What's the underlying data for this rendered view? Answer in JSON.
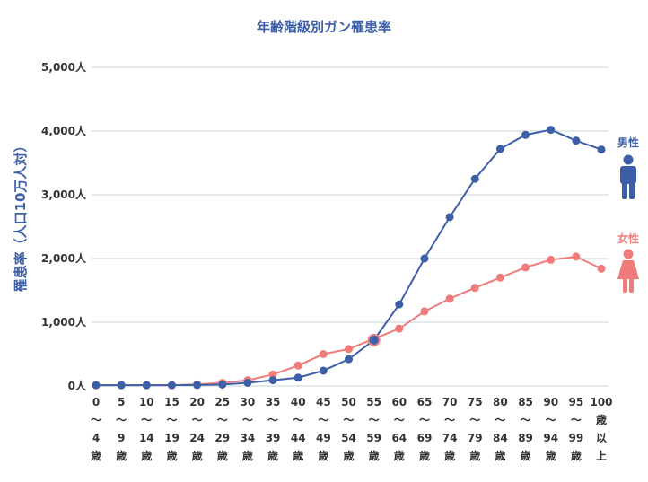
{
  "chart_data": {
    "type": "line",
    "title": "年齢階級別ガン罹患率",
    "ylabel": "罹患率（人口10万人対）",
    "xlabel": "",
    "ylim": [
      0,
      5000
    ],
    "yticks": [
      "0人",
      "1,000人",
      "2,000人",
      "3,000人",
      "4,000人",
      "5,000人"
    ],
    "ytick_values": [
      0,
      1000,
      2000,
      3000,
      4000,
      5000
    ],
    "categories": [
      [
        "0",
        "〜",
        "4",
        "歳"
      ],
      [
        "5",
        "〜",
        "9",
        "歳"
      ],
      [
        "10",
        "〜",
        "14",
        "歳"
      ],
      [
        "15",
        "〜",
        "19",
        "歳"
      ],
      [
        "20",
        "〜",
        "24",
        "歳"
      ],
      [
        "25",
        "〜",
        "29",
        "歳"
      ],
      [
        "30",
        "〜",
        "34",
        "歳"
      ],
      [
        "35",
        "〜",
        "39",
        "歳"
      ],
      [
        "40",
        "〜",
        "44",
        "歳"
      ],
      [
        "45",
        "〜",
        "49",
        "歳"
      ],
      [
        "50",
        "〜",
        "54",
        "歳"
      ],
      [
        "55",
        "〜",
        "59",
        "歳"
      ],
      [
        "60",
        "〜",
        "64",
        "歳"
      ],
      [
        "65",
        "〜",
        "69",
        "歳"
      ],
      [
        "70",
        "〜",
        "74",
        "歳"
      ],
      [
        "75",
        "〜",
        "79",
        "歳"
      ],
      [
        "80",
        "〜",
        "84",
        "歳"
      ],
      [
        "85",
        "〜",
        "89",
        "歳"
      ],
      [
        "90",
        "〜",
        "94",
        "歳"
      ],
      [
        "95",
        "〜",
        "99",
        "歳"
      ],
      [
        "100",
        "歳",
        "以",
        "上"
      ]
    ],
    "series": [
      {
        "name": "男性",
        "color": "#3d5fa8",
        "icon": "male-person-icon",
        "values": [
          12,
          12,
          12,
          12,
          15,
          22,
          50,
          90,
          130,
          240,
          420,
          720,
          1280,
          2000,
          2650,
          3250,
          3720,
          3940,
          4020,
          3850,
          3710
        ]
      },
      {
        "name": "女性",
        "color": "#f07b7b",
        "icon": "female-person-icon",
        "values": [
          12,
          12,
          12,
          12,
          25,
          50,
          90,
          180,
          320,
          500,
          580,
          740,
          900,
          1170,
          1370,
          1540,
          1700,
          1860,
          1980,
          2030,
          1840
        ]
      }
    ],
    "grid": true,
    "legend": "right"
  }
}
